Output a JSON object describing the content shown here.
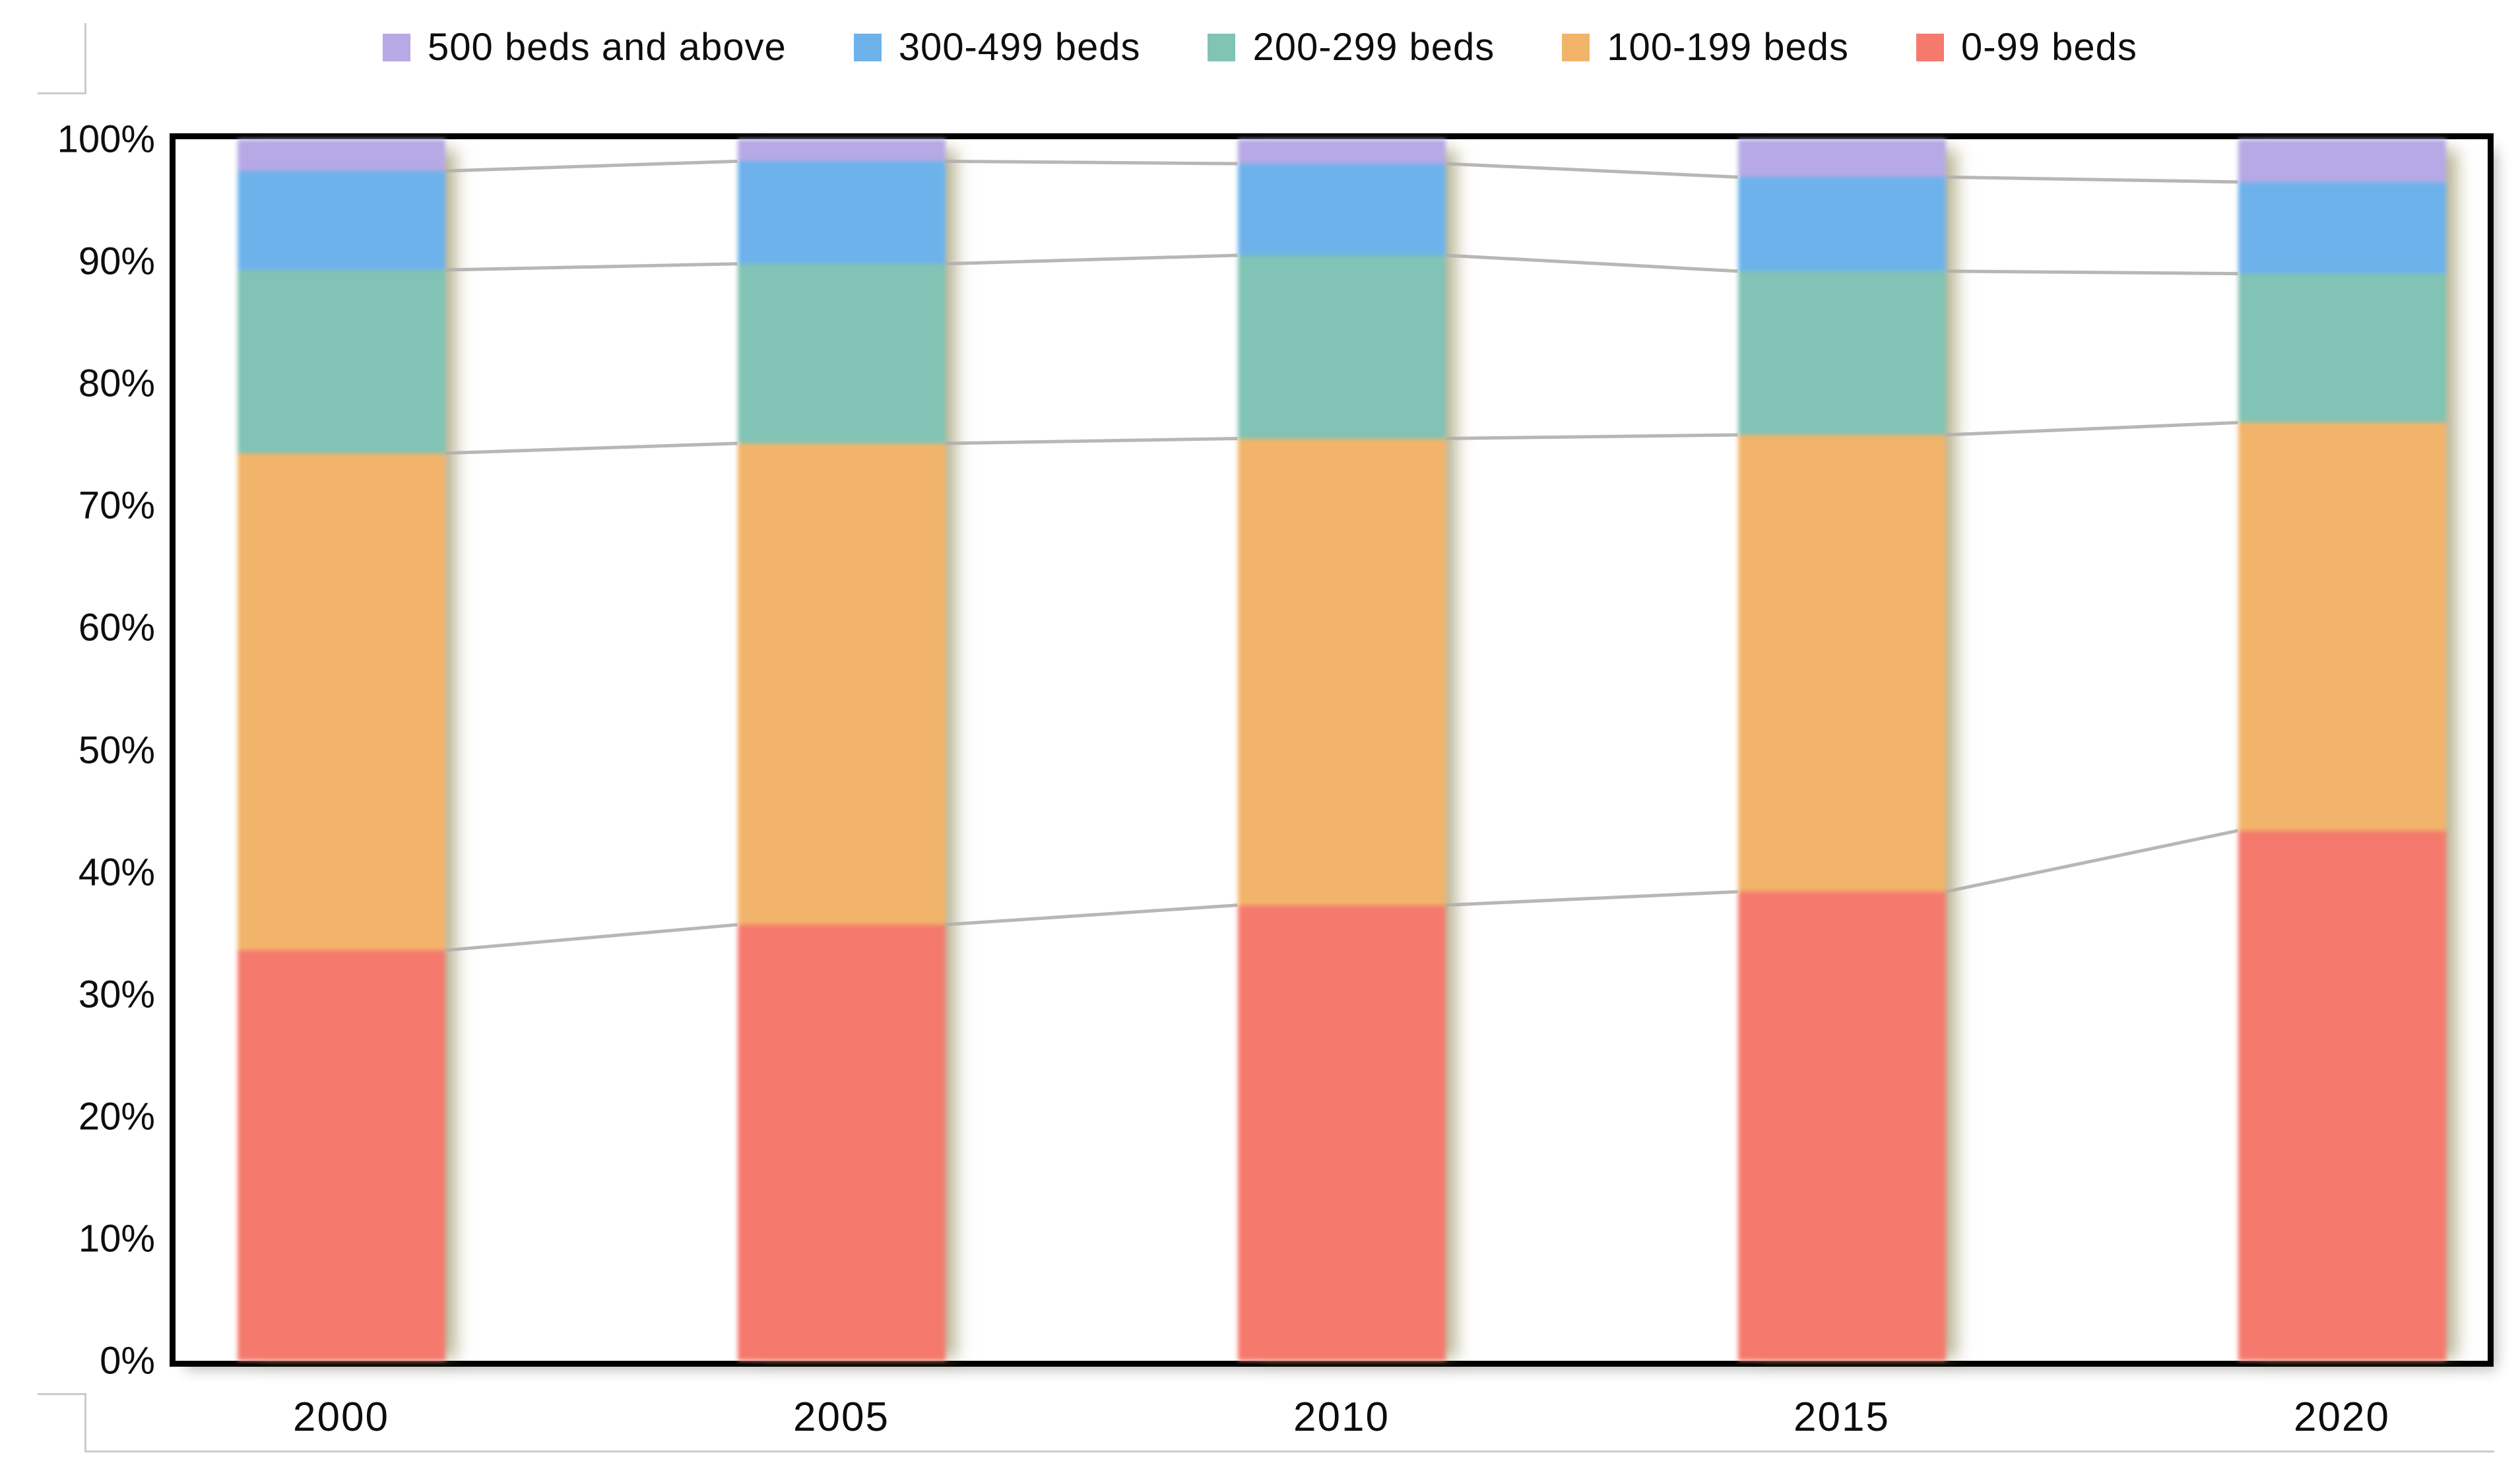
{
  "chart_data": {
    "type": "bar",
    "subtype": "stacked-100-percent-column",
    "title": "",
    "xlabel": "",
    "ylabel": "",
    "categories": [
      "2000",
      "2005",
      "2010",
      "2015",
      "2020"
    ],
    "series": [
      {
        "name": "0-99 beds",
        "color": "#f57a6d",
        "values": [
          33.6,
          35.7,
          37.3,
          38.4,
          43.4
        ]
      },
      {
        "name": "100-199 beds",
        "color": "#f2b46b",
        "values": [
          40.7,
          39.4,
          38.2,
          37.4,
          33.4
        ]
      },
      {
        "name": "200-299 beds",
        "color": "#81c3b4",
        "values": [
          15.0,
          14.7,
          15.0,
          13.4,
          12.2
        ]
      },
      {
        "name": "300-499 beds",
        "color": "#6eb2ec",
        "values": [
          8.1,
          8.4,
          7.5,
          7.7,
          7.5
        ]
      },
      {
        "name": "500 beds and above",
        "color": "#b6a9e5",
        "values": [
          2.6,
          1.8,
          2.0,
          3.1,
          3.5
        ]
      }
    ],
    "legend": [
      "500 beds and above",
      "300-499 beds",
      "200-299 beds",
      "100-199 beds",
      "0-99 beds"
    ],
    "legend_position": "top",
    "y_axis": {
      "min": 0,
      "max": 100,
      "ticks": [
        "0%",
        "10%",
        "20%",
        "30%",
        "40%",
        "50%",
        "60%",
        "70%",
        "80%",
        "90%",
        "100%"
      ]
    },
    "grid": false,
    "series_connector_lines": true,
    "connector_line_color": "#b1aeac",
    "axis_color": "#000000",
    "plot_background": "#ffffff"
  }
}
